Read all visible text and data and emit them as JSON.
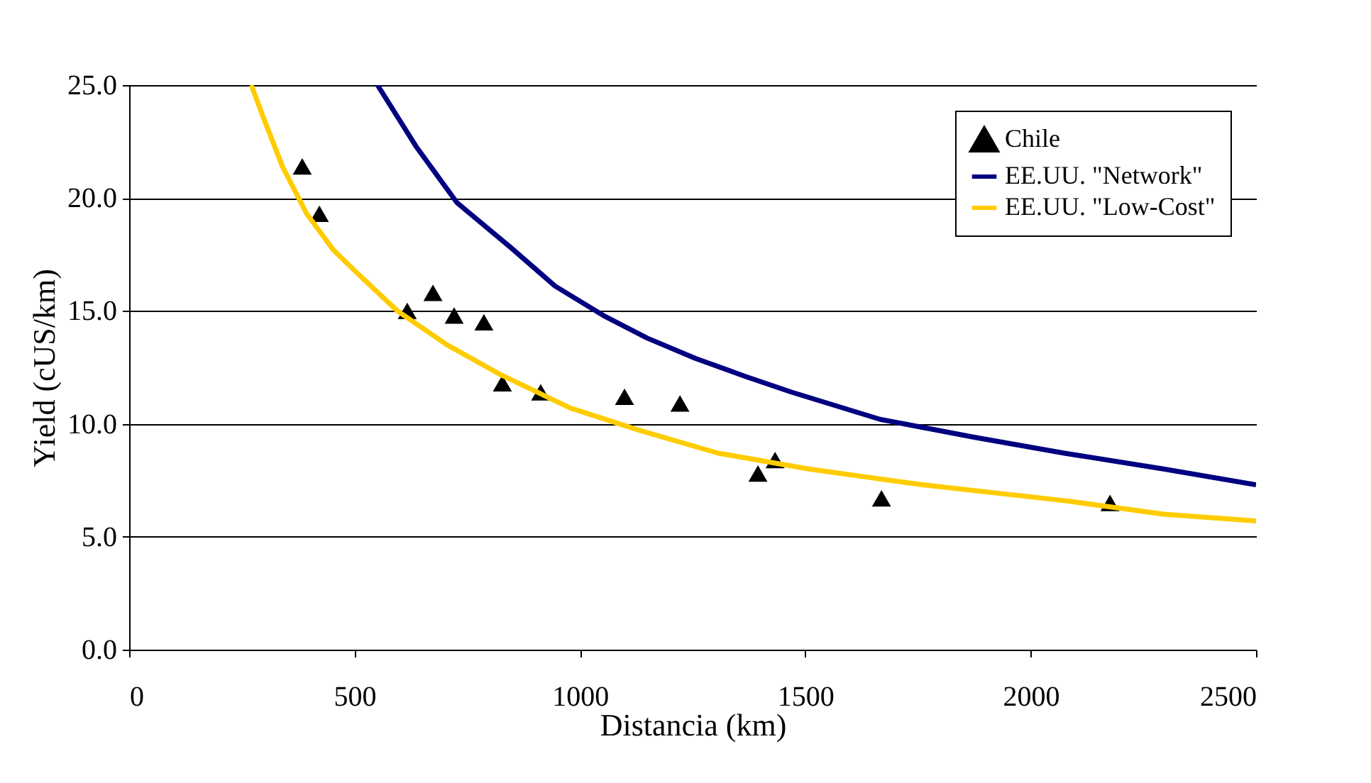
{
  "chart_data": {
    "type": "line",
    "xlabel": "Distancia (km)",
    "ylabel": "Yield (cUS/km)",
    "xlim": [
      0,
      2500
    ],
    "xticks": [
      0,
      500,
      1000,
      1500,
      2000,
      2500
    ],
    "ylim": [
      0,
      25
    ],
    "yticks": [
      {
        "value": 0,
        "label": "0.0"
      },
      {
        "value": 5,
        "label": "5.0"
      },
      {
        "value": 10,
        "label": "10.0"
      },
      {
        "value": 15,
        "label": "15.0"
      },
      {
        "value": 20,
        "label": "20.0"
      },
      {
        "value": 25,
        "label": "25.0"
      }
    ],
    "grid": "y",
    "legend": "top right",
    "line_style": "solid",
    "series": [
      {
        "name": "Chile",
        "type": "scatter",
        "marker": "triangle",
        "color": "#000000",
        "x": [
          384,
          422,
          617,
          674,
          721,
          787,
          828,
          913,
          1099,
          1222,
          1395,
          1433,
          1669,
          2176
        ],
        "values": [
          21.4,
          19.3,
          15.0,
          15.8,
          14.8,
          14.5,
          11.8,
          11.4,
          11.2,
          10.9,
          7.8,
          8.4,
          6.7,
          6.5
        ]
      },
      {
        "name": "EE.UU. \"Network\"",
        "color": "#000080",
        "x": [
          551,
          636,
          727,
          847,
          945,
          1052,
          1149,
          1256,
          1367,
          1470,
          1666,
          1877,
          2075,
          2295,
          2500
        ],
        "values": [
          25,
          22.3,
          19.8,
          17.8,
          16.1,
          14.8,
          13.8,
          12.9,
          12.1,
          11.4,
          10.2,
          9.4,
          8.7,
          8.0,
          7.3
        ]
      },
      {
        "name": "EE.UU. \"Low-Cost\"",
        "color": "#ffcc00",
        "x": [
          271,
          299,
          340,
          394,
          453,
          510,
          595,
          705,
          822,
          979,
          1134,
          1307,
          1508,
          1760,
          2075,
          2295,
          2500
        ],
        "values": [
          25,
          23.5,
          21.4,
          19.3,
          17.7,
          16.6,
          15.0,
          13.5,
          12.2,
          10.7,
          9.7,
          8.7,
          8.0,
          7.3,
          6.6,
          6.0,
          5.7
        ]
      }
    ]
  }
}
